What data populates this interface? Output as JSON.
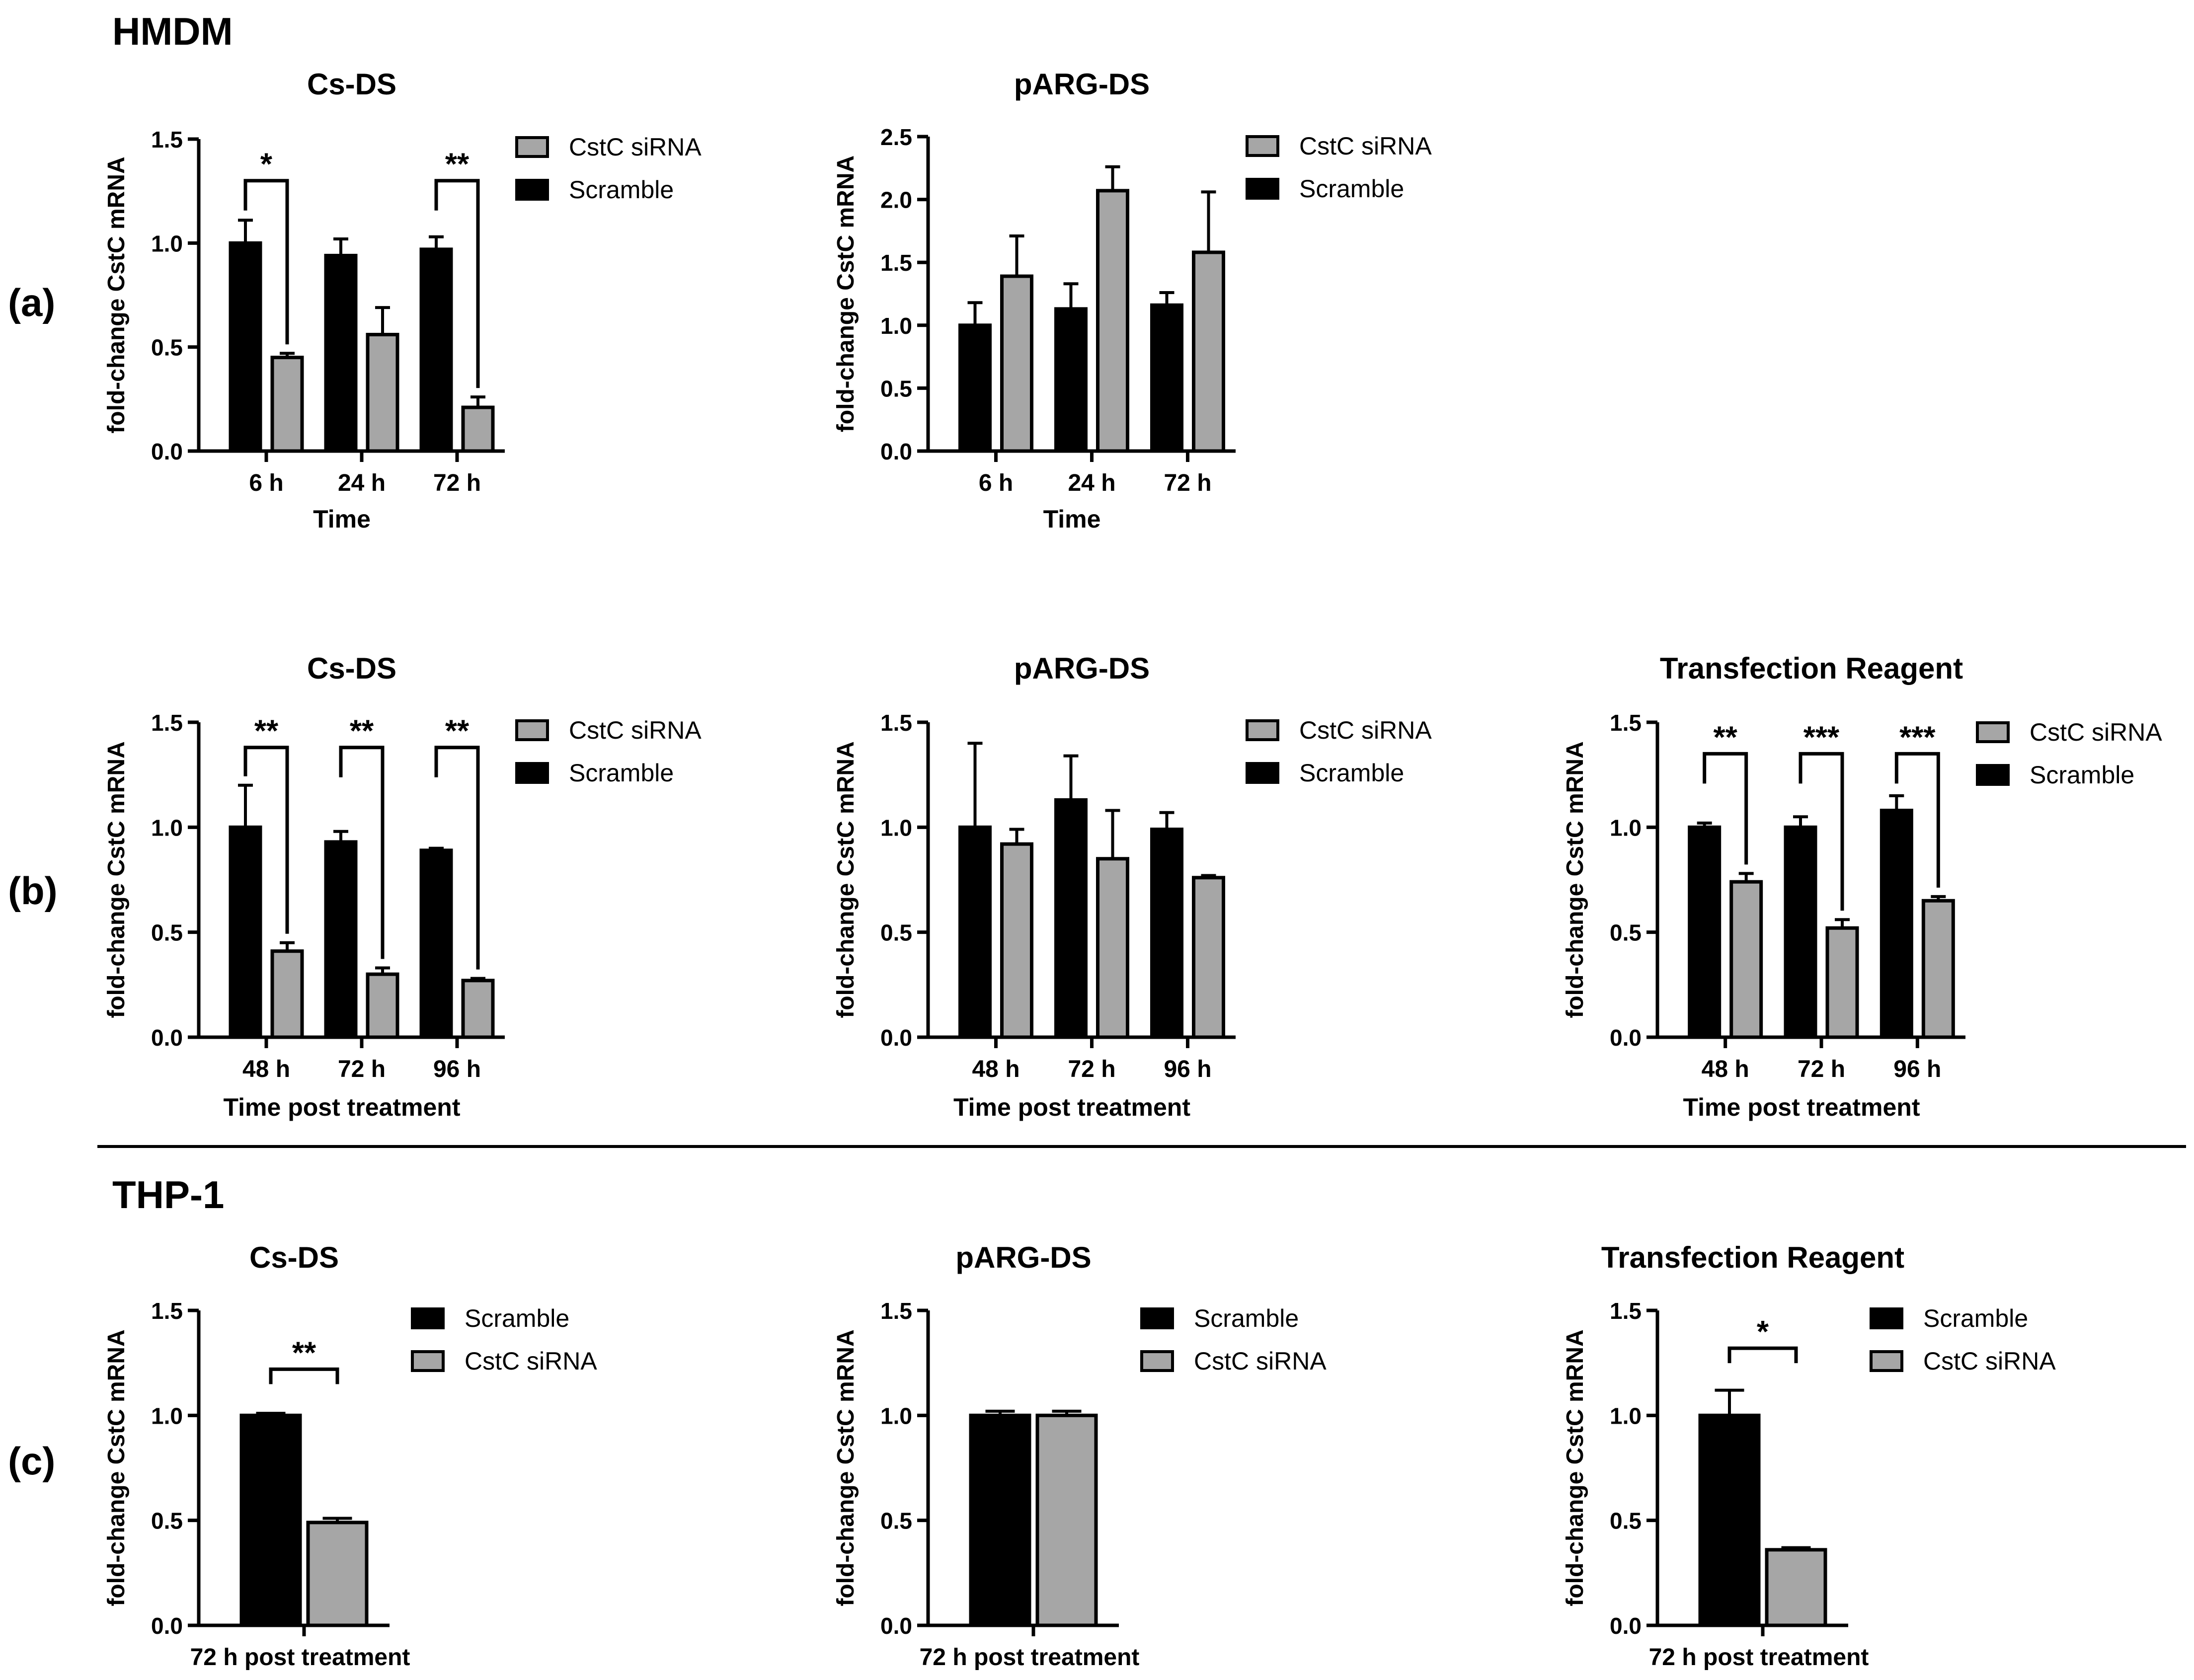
{
  "colors": {
    "scramble": "#000000",
    "sirna": "#a6a6a6",
    "outline": "#000000"
  },
  "sections": [
    {
      "id": "hmdm",
      "label": "HMDM"
    },
    {
      "id": "thp1",
      "label": "THP-1"
    }
  ],
  "row_labels": [
    "(a)",
    "(b)",
    "(c)"
  ],
  "chart_data": [
    {
      "id": "a1",
      "type": "bar",
      "row": "a",
      "title": "Cs-DS",
      "ylabel": "fold-change CstC mRNA",
      "xlabel": "Time",
      "ylim": [
        0,
        1.5
      ],
      "yticks": [
        "0.0",
        "0.5",
        "1.0",
        "1.5"
      ],
      "ytick_values": [
        0,
        0.5,
        1.0,
        1.5
      ],
      "categories": [
        "6 h",
        "24 h",
        "72 h"
      ],
      "legend": [
        "CstC siRNA",
        "Scramble"
      ],
      "series": [
        {
          "name": "Scramble",
          "values": [
            1.0,
            0.94,
            0.97
          ],
          "errors": [
            0.11,
            0.08,
            0.06
          ]
        },
        {
          "name": "CstC siRNA",
          "values": [
            0.45,
            0.56,
            0.21
          ],
          "errors": [
            0.02,
            0.13,
            0.05
          ]
        }
      ],
      "significance": [
        {
          "category": 0,
          "label": "*",
          "y": 1.3
        },
        {
          "category": 2,
          "label": "**",
          "y": 1.3
        }
      ]
    },
    {
      "id": "a2",
      "type": "bar",
      "row": "a",
      "title": "pARG-DS",
      "ylabel": "fold-change CstC mRNA",
      "xlabel": "Time",
      "ylim": [
        0,
        2.5
      ],
      "yticks": [
        "0.0",
        "0.5",
        "1.0",
        "1.5",
        "2.0",
        "2.5"
      ],
      "ytick_values": [
        0,
        0.5,
        1.0,
        1.5,
        2.0,
        2.5
      ],
      "categories": [
        "6 h",
        "24 h",
        "72 h"
      ],
      "legend": [
        "CstC siRNA",
        "Scramble"
      ],
      "series": [
        {
          "name": "Scramble",
          "values": [
            1.0,
            1.13,
            1.16
          ],
          "errors": [
            0.18,
            0.2,
            0.1
          ]
        },
        {
          "name": "CstC siRNA",
          "values": [
            1.39,
            2.07,
            1.58
          ],
          "errors": [
            0.32,
            0.19,
            0.48
          ]
        }
      ],
      "significance": []
    },
    {
      "id": "b1",
      "type": "bar",
      "row": "b",
      "title": "Cs-DS",
      "ylabel": "fold-change CstC mRNA",
      "xlabel": "Time post treatment",
      "ylim": [
        0,
        1.5
      ],
      "yticks": [
        "0.0",
        "0.5",
        "1.0",
        "1.5"
      ],
      "ytick_values": [
        0,
        0.5,
        1.0,
        1.5
      ],
      "categories": [
        "48 h",
        "72 h",
        "96 h"
      ],
      "legend": [
        "CstC siRNA",
        "Scramble"
      ],
      "series": [
        {
          "name": "Scramble",
          "values": [
            1.0,
            0.93,
            0.89
          ],
          "errors": [
            0.2,
            0.05,
            0.01
          ]
        },
        {
          "name": "CstC siRNA",
          "values": [
            0.41,
            0.3,
            0.27
          ],
          "errors": [
            0.04,
            0.03,
            0.01
          ]
        }
      ],
      "significance": [
        {
          "category": 0,
          "label": "**",
          "y": 1.38
        },
        {
          "category": 1,
          "label": "**",
          "y": 1.38
        },
        {
          "category": 2,
          "label": "**",
          "y": 1.38
        }
      ]
    },
    {
      "id": "b2",
      "type": "bar",
      "row": "b",
      "title": "pARG-DS",
      "ylabel": "fold-change CstC mRNA",
      "xlabel": "Time post treatment",
      "ylim": [
        0,
        1.5
      ],
      "yticks": [
        "0.0",
        "0.5",
        "1.0",
        "1.5"
      ],
      "ytick_values": [
        0,
        0.5,
        1.0,
        1.5
      ],
      "categories": [
        "48 h",
        "72 h",
        "96 h"
      ],
      "legend": [
        "CstC siRNA",
        "Scramble"
      ],
      "series": [
        {
          "name": "Scramble",
          "values": [
            1.0,
            1.13,
            0.99
          ],
          "errors": [
            0.4,
            0.21,
            0.08
          ]
        },
        {
          "name": "CstC siRNA",
          "values": [
            0.92,
            0.85,
            0.76
          ],
          "errors": [
            0.07,
            0.23,
            0.01
          ]
        }
      ],
      "significance": []
    },
    {
      "id": "b3",
      "type": "bar",
      "row": "b",
      "title": "Transfection Reagent",
      "ylabel": "fold-change CstC mRNA",
      "xlabel": "Time post treatment",
      "ylim": [
        0,
        1.5
      ],
      "yticks": [
        "0.0",
        "0.5",
        "1.0",
        "1.5"
      ],
      "ytick_values": [
        0,
        0.5,
        1.0,
        1.5
      ],
      "categories": [
        "48 h",
        "72 h",
        "96 h"
      ],
      "legend": [
        "CstC siRNA",
        "Scramble"
      ],
      "series": [
        {
          "name": "Scramble",
          "values": [
            1.0,
            1.0,
            1.08
          ],
          "errors": [
            0.02,
            0.05,
            0.07
          ]
        },
        {
          "name": "CstC siRNA",
          "values": [
            0.74,
            0.52,
            0.65
          ],
          "errors": [
            0.04,
            0.04,
            0.02
          ]
        }
      ],
      "significance": [
        {
          "category": 0,
          "label": "**",
          "y": 1.35
        },
        {
          "category": 1,
          "label": "***",
          "y": 1.35
        },
        {
          "category": 2,
          "label": "***",
          "y": 1.35
        }
      ]
    },
    {
      "id": "c1",
      "type": "bar",
      "row": "c",
      "title": "Cs-DS",
      "ylabel": "fold-change CstC mRNA",
      "xlabel": "",
      "ylim": [
        0,
        1.5
      ],
      "yticks": [
        "0.0",
        "0.5",
        "1.0",
        "1.5"
      ],
      "ytick_values": [
        0,
        0.5,
        1.0,
        1.5
      ],
      "categories": [
        "72 h post treatment"
      ],
      "legend": [
        "Scramble",
        "CstC siRNA"
      ],
      "series": [
        {
          "name": "Scramble",
          "values": [
            1.0
          ],
          "errors": [
            0.01
          ]
        },
        {
          "name": "CstC siRNA",
          "values": [
            0.49
          ],
          "errors": [
            0.02
          ]
        }
      ],
      "significance": [
        {
          "category": 0,
          "label": "**",
          "y": 1.22
        }
      ]
    },
    {
      "id": "c2",
      "type": "bar",
      "row": "c",
      "title": "pARG-DS",
      "ylabel": "fold-change CstC mRNA",
      "xlabel": "",
      "ylim": [
        0,
        1.5
      ],
      "yticks": [
        "0.0",
        "0.5",
        "1.0",
        "1.5"
      ],
      "ytick_values": [
        0,
        0.5,
        1.0,
        1.5
      ],
      "categories": [
        "72 h post treatment"
      ],
      "legend": [
        "Scramble",
        "CstC siRNA"
      ],
      "series": [
        {
          "name": "Scramble",
          "values": [
            1.0
          ],
          "errors": [
            0.02
          ]
        },
        {
          "name": "CstC siRNA",
          "values": [
            1.0
          ],
          "errors": [
            0.02
          ]
        }
      ],
      "significance": []
    },
    {
      "id": "c3",
      "type": "bar",
      "row": "c",
      "title": "Transfection Reagent",
      "ylabel": "fold-change CstC mRNA",
      "xlabel": "",
      "ylim": [
        0,
        1.5
      ],
      "yticks": [
        "0.0",
        "0.5",
        "1.0",
        "1.5"
      ],
      "ytick_values": [
        0,
        0.5,
        1.0,
        1.5
      ],
      "categories": [
        "72 h post treatment"
      ],
      "legend": [
        "Scramble",
        "CstC siRNA"
      ],
      "series": [
        {
          "name": "Scramble",
          "values": [
            1.0
          ],
          "errors": [
            0.12
          ]
        },
        {
          "name": "CstC siRNA",
          "values": [
            0.36
          ],
          "errors": [
            0.01
          ]
        }
      ],
      "significance": [
        {
          "category": 0,
          "label": "*",
          "y": 1.32
        }
      ]
    }
  ]
}
